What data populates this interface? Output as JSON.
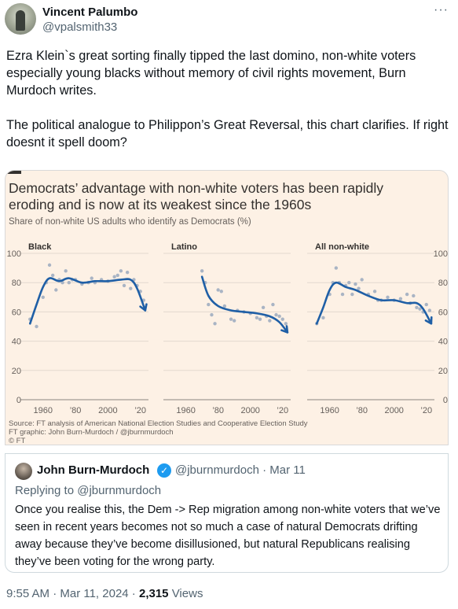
{
  "author": {
    "name": "Vincent Palumbo",
    "handle": "@vpalsmith33"
  },
  "tweet": {
    "paragraphs": [
      "Ezra Klein`s great sorting finally tipped the last domino, non-white voters especially young blacks without memory of civil rights movement, Burn Murdoch writes.",
      "The political analogue to Philippon’s Great Reversal, this chart clarifies. If right doesnt it spell doom?"
    ]
  },
  "chart": {
    "title": "Democrats’ advantage with non-white voters has been rapidly eroding and is now at its weakest since the 1960s",
    "subtitle": "Share of non-white US adults who identify as Democrats (%)",
    "source": "Source: FT analysis of American National Election Studies and Cooperative Election Study",
    "graphic": "FT graphic: John Burn-Murdoch / @jburnmurdoch",
    "copyright": "© FT",
    "colors": {
      "background": "#fdf1e5",
      "line": "#1f5fa6",
      "dots": "#a9b4c4",
      "grid": "#e3d9cf"
    }
  },
  "chart_data": [
    {
      "type": "scatter",
      "title": "Black",
      "ylim": [
        0,
        100
      ],
      "y_ticks": [
        "0",
        "20",
        "40",
        "60",
        "80",
        "100"
      ],
      "x_ticks": [
        "1960",
        "’80",
        "2000",
        "’20"
      ],
      "points": [
        [
          1952,
          55
        ],
        [
          1956,
          50
        ],
        [
          1960,
          70
        ],
        [
          1962,
          80
        ],
        [
          1964,
          92
        ],
        [
          1966,
          85
        ],
        [
          1968,
          75
        ],
        [
          1970,
          82
        ],
        [
          1972,
          80
        ],
        [
          1974,
          88
        ],
        [
          1976,
          80
        ],
        [
          1978,
          82
        ],
        [
          1980,
          82
        ],
        [
          1984,
          79
        ],
        [
          1988,
          80
        ],
        [
          1990,
          83
        ],
        [
          1992,
          80
        ],
        [
          1996,
          82
        ],
        [
          2000,
          81
        ],
        [
          2004,
          84
        ],
        [
          2006,
          85
        ],
        [
          2008,
          88
        ],
        [
          2010,
          78
        ],
        [
          2012,
          87
        ],
        [
          2014,
          76
        ],
        [
          2016,
          82
        ],
        [
          2018,
          78
        ],
        [
          2020,
          74
        ],
        [
          2022,
          68
        ]
      ],
      "trend": [
        [
          1952,
          52
        ],
        [
          1956,
          65
        ],
        [
          1960,
          77
        ],
        [
          1964,
          83
        ],
        [
          1970,
          81
        ],
        [
          1976,
          83
        ],
        [
          1984,
          80
        ],
        [
          1992,
          81
        ],
        [
          2000,
          81
        ],
        [
          2008,
          82
        ],
        [
          2014,
          82
        ],
        [
          2018,
          76
        ],
        [
          2023,
          61
        ]
      ]
    },
    {
      "type": "scatter",
      "title": "Latino",
      "ylim": [
        0,
        100
      ],
      "y_ticks": [
        "0",
        "20",
        "40",
        "60",
        "80",
        "100"
      ],
      "x_ticks": [
        "1960",
        "’80",
        "2000",
        "’20"
      ],
      "points": [
        [
          1970,
          88
        ],
        [
          1972,
          80
        ],
        [
          1974,
          65
        ],
        [
          1976,
          58
        ],
        [
          1978,
          52
        ],
        [
          1980,
          75
        ],
        [
          1982,
          74
        ],
        [
          1984,
          64
        ],
        [
          1988,
          55
        ],
        [
          1990,
          54
        ],
        [
          1992,
          61
        ],
        [
          1996,
          60
        ],
        [
          2000,
          59
        ],
        [
          2004,
          56
        ],
        [
          2006,
          55
        ],
        [
          2008,
          63
        ],
        [
          2010,
          57
        ],
        [
          2012,
          54
        ],
        [
          2014,
          65
        ],
        [
          2016,
          58
        ],
        [
          2018,
          57
        ],
        [
          2020,
          55
        ],
        [
          2022,
          52
        ]
      ],
      "trend": [
        [
          1970,
          84
        ],
        [
          1974,
          71
        ],
        [
          1980,
          64
        ],
        [
          1988,
          61
        ],
        [
          1996,
          60
        ],
        [
          2004,
          59
        ],
        [
          2012,
          57
        ],
        [
          2018,
          53
        ],
        [
          2023,
          46
        ]
      ]
    },
    {
      "type": "scatter",
      "title": "All non-white",
      "ylim": [
        0,
        100
      ],
      "y_ticks": [
        "0",
        "20",
        "40",
        "60",
        "80",
        "100"
      ],
      "x_ticks": [
        "1960",
        "’80",
        "2000",
        "’20"
      ],
      "points": [
        [
          1952,
          52
        ],
        [
          1956,
          56
        ],
        [
          1960,
          72
        ],
        [
          1962,
          80
        ],
        [
          1964,
          90
        ],
        [
          1966,
          80
        ],
        [
          1968,
          72
        ],
        [
          1970,
          78
        ],
        [
          1972,
          80
        ],
        [
          1974,
          72
        ],
        [
          1976,
          79
        ],
        [
          1978,
          76
        ],
        [
          1980,
          82
        ],
        [
          1984,
          72
        ],
        [
          1988,
          74
        ],
        [
          1990,
          68
        ],
        [
          1992,
          68
        ],
        [
          1996,
          70
        ],
        [
          2000,
          68
        ],
        [
          2004,
          69
        ],
        [
          2008,
          72
        ],
        [
          2010,
          66
        ],
        [
          2012,
          71
        ],
        [
          2014,
          63
        ],
        [
          2016,
          62
        ],
        [
          2018,
          60
        ],
        [
          2020,
          65
        ],
        [
          2022,
          61
        ]
      ],
      "trend": [
        [
          1952,
          52
        ],
        [
          1956,
          63
        ],
        [
          1960,
          75
        ],
        [
          1964,
          80
        ],
        [
          1970,
          77
        ],
        [
          1976,
          75
        ],
        [
          1984,
          71
        ],
        [
          1992,
          68
        ],
        [
          2000,
          68
        ],
        [
          2008,
          66
        ],
        [
          2014,
          66
        ],
        [
          2018,
          62
        ],
        [
          2023,
          52
        ]
      ]
    }
  ],
  "quote": {
    "name": "John Burn-Murdoch",
    "handle_date": "@jburnmurdoch · Mar 11",
    "reply_to": "Replying to @jburnmurdoch",
    "text": "Once you realise this, the Dem -> Rep migration among non-white voters that we’ve seen in recent years becomes not so much a case of natural Democrats drifting away because they’ve become disillusioned, but natural Republicans realising they’ve been voting for the wrong party."
  },
  "footer": {
    "timestamp": "9:55 AM · Mar 11, 2024 · ",
    "views_count": "2,315",
    "views_label": " Views"
  },
  "icons": {
    "more": "more-horizontal-icon",
    "verified": "verified-badge-icon"
  }
}
